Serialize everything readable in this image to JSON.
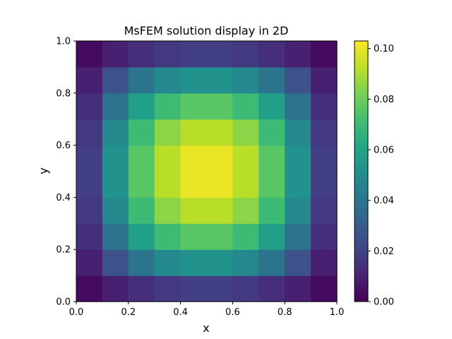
{
  "chart_data": {
    "type": "heatmap",
    "title": "MsFEM solution display in 2D",
    "xlabel": "x",
    "ylabel": "y",
    "xlim": [
      0.0,
      1.0
    ],
    "ylim": [
      0.0,
      1.0
    ],
    "x_ticks": [
      0.0,
      0.2,
      0.4,
      0.6,
      0.8,
      1.0
    ],
    "y_ticks": [
      0.0,
      0.2,
      0.4,
      0.6,
      0.8,
      1.0
    ],
    "x_tick_labels": [
      "0.0",
      "0.2",
      "0.4",
      "0.6",
      "0.8",
      "1.0"
    ],
    "y_tick_labels": [
      "0.0",
      "0.2",
      "0.4",
      "0.6",
      "0.8",
      "1.0"
    ],
    "colormap": "viridis",
    "colorbar": {
      "range": [
        0.0,
        0.103
      ],
      "ticks": [
        0.0,
        0.02,
        0.04,
        0.06,
        0.08,
        0.1
      ],
      "tick_labels": [
        "0.00",
        "0.02",
        "0.04",
        "0.06",
        "0.08",
        "0.10"
      ]
    },
    "grid": false,
    "value_description": "approx. max 0.103 at (0.5, 0.5), zero on boundary",
    "cell_centers_x": [
      0.05,
      0.15,
      0.25,
      0.35,
      0.45,
      0.55,
      0.65,
      0.75,
      0.85,
      0.95
    ],
    "cell_centers_y": [
      0.05,
      0.15,
      0.25,
      0.35,
      0.45,
      0.55,
      0.65,
      0.75,
      0.85,
      0.95
    ],
    "cell_values": [
      [
        0.003,
        0.009,
        0.014,
        0.017,
        0.019,
        0.019,
        0.017,
        0.014,
        0.009,
        0.003
      ],
      [
        0.009,
        0.026,
        0.039,
        0.048,
        0.052,
        0.052,
        0.048,
        0.039,
        0.026,
        0.009
      ],
      [
        0.014,
        0.039,
        0.058,
        0.07,
        0.076,
        0.076,
        0.07,
        0.058,
        0.039,
        0.014
      ],
      [
        0.017,
        0.048,
        0.07,
        0.085,
        0.092,
        0.092,
        0.085,
        0.07,
        0.048,
        0.017
      ],
      [
        0.019,
        0.052,
        0.076,
        0.092,
        0.1,
        0.1,
        0.092,
        0.076,
        0.052,
        0.019
      ],
      [
        0.019,
        0.052,
        0.076,
        0.092,
        0.1,
        0.1,
        0.092,
        0.076,
        0.052,
        0.019
      ],
      [
        0.017,
        0.048,
        0.07,
        0.085,
        0.092,
        0.092,
        0.085,
        0.07,
        0.048,
        0.017
      ],
      [
        0.014,
        0.039,
        0.058,
        0.07,
        0.076,
        0.076,
        0.07,
        0.058,
        0.039,
        0.014
      ],
      [
        0.009,
        0.026,
        0.039,
        0.048,
        0.052,
        0.052,
        0.048,
        0.039,
        0.026,
        0.009
      ],
      [
        0.003,
        0.009,
        0.014,
        0.017,
        0.019,
        0.019,
        0.017,
        0.014,
        0.009,
        0.003
      ]
    ]
  }
}
